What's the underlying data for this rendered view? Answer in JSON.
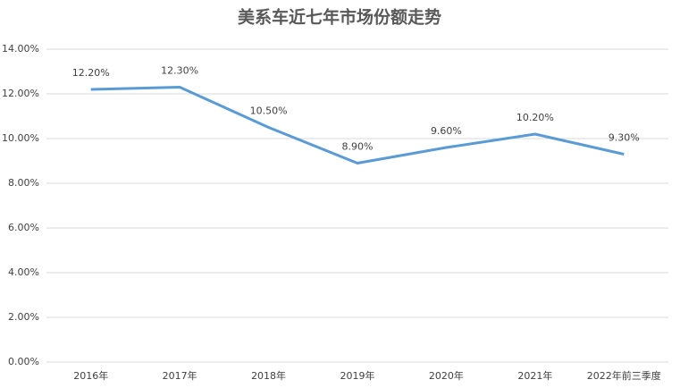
{
  "chart_data": {
    "type": "line",
    "title": "美系车近七年市场份额走势",
    "categories": [
      "2016年",
      "2017年",
      "2018年",
      "2019年",
      "2020年",
      "2021年",
      "2022年前三季度"
    ],
    "series": [
      {
        "name": "美系车",
        "color": "#5b9bd5",
        "values": [
          12.2,
          12.3,
          10.5,
          8.9,
          9.6,
          10.2,
          9.3
        ],
        "value_labels": [
          "12.20%",
          "12.30%",
          "10.50%",
          "8.90%",
          "9.60%",
          "10.20%",
          "9.30%"
        ]
      }
    ],
    "ylim": [
      0,
      14
    ],
    "yticks": [
      {
        "value": 0,
        "label": "0.00%"
      },
      {
        "value": 2,
        "label": "2.00%"
      },
      {
        "value": 4,
        "label": "4.00%"
      },
      {
        "value": 6,
        "label": "6.00%"
      },
      {
        "value": 8,
        "label": "8.00%"
      },
      {
        "value": 10,
        "label": "10.00%"
      },
      {
        "value": 12,
        "label": "12.00%"
      },
      {
        "value": 14,
        "label": "14.00%"
      }
    ],
    "grid": true
  }
}
